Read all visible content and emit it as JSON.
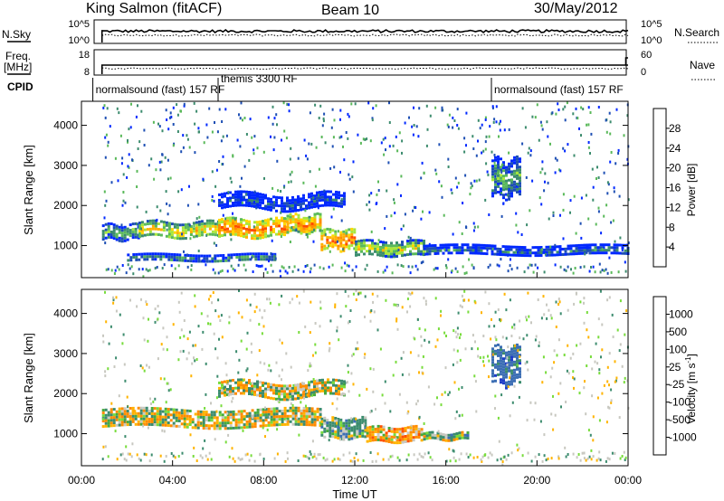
{
  "header": {
    "station": "King Salmon (fitACF)",
    "beam": "Beam 10",
    "date": "30/May/2012"
  },
  "noise_panel": {
    "left_label": "N.Sky",
    "right_label": "N.Search",
    "left_ticks": [
      "10^5",
      "10^0"
    ],
    "right_ticks": [
      "10^5",
      "10^0"
    ]
  },
  "freq_panel": {
    "left_label_1": "Freq.",
    "left_label_2": "[MHz]",
    "right_label": "Nave",
    "left_ticks": [
      "18",
      "8"
    ],
    "right_ticks": [
      "60",
      "0"
    ]
  },
  "cpid": {
    "label": "CPID",
    "segments": [
      {
        "name": "normalsound (fast) 157 RF",
        "start_hour": 0.5,
        "end_hour": 6.0
      },
      {
        "name": "themis 3300 RF",
        "start_hour": 6.0,
        "end_hour": 18.0
      },
      {
        "name": "normalsound (fast) 157 RF",
        "start_hour": 18.0,
        "end_hour": 24.0
      }
    ]
  },
  "power_panel": {
    "ylabel": "Slant Range [km]",
    "colorbar_label": "Power [dB]",
    "colorbar_ticks": [
      "28",
      "24",
      "20",
      "16",
      "12",
      "8",
      "4"
    ],
    "colors": [
      "#ff0000",
      "#ff4d00",
      "#ff8c00",
      "#ffb000",
      "#ffd700",
      "#a8e63c",
      "#5ab95a",
      "#3c8c6e",
      "#1e4fb4",
      "#0028ff"
    ]
  },
  "velocity_panel": {
    "ylabel": "Slant Range [km]",
    "colorbar_label": "Velocity [m s",
    "colorbar_label_sup": "-1",
    "colorbar_label_end": "]",
    "colorbar_ticks": [
      "1000",
      "500",
      "100",
      "25",
      "-25",
      "-100",
      "-500",
      "-1000"
    ],
    "colors": [
      "#1e3cc8",
      "#3c6eb4",
      "#3c8c6e",
      "#46aa3c",
      "#78dc3c",
      "#c8c8c0",
      "#ffb400",
      "#ff8c00",
      "#ff5000",
      "#ff0000"
    ]
  },
  "xaxis": {
    "label": "Time UT",
    "ticks": [
      "00:00",
      "04:00",
      "08:00",
      "12:00",
      "16:00",
      "20:00",
      "00:00"
    ]
  },
  "chart_data": {
    "type": "heatmap",
    "title": "King Salmon (fitACF) Beam 10 30/May/2012",
    "xlabel": "Time UT",
    "ylabel": "Slant Range [km]",
    "x_range_hours": [
      0,
      24
    ],
    "y_range_km": [
      200,
      4600
    ],
    "yticks_km": [
      1000,
      2000,
      3000,
      4000
    ],
    "data_start_hour": 0.9,
    "power_features": [
      {
        "t0": 0.9,
        "t1": 2.5,
        "r_center": 1350,
        "r_half_width": 180,
        "power_db": 12
      },
      {
        "t0": 2.5,
        "t1": 6.0,
        "r_center": 1400,
        "r_half_width": 200,
        "power_db": 18
      },
      {
        "t0": 6.0,
        "t1": 9.0,
        "r_center": 1450,
        "r_half_width": 220,
        "power_db": 24
      },
      {
        "t0": 9.0,
        "t1": 10.5,
        "r_center": 1550,
        "r_half_width": 220,
        "power_db": 22
      },
      {
        "t0": 10.5,
        "t1": 12.0,
        "r_center": 1150,
        "r_half_width": 250,
        "power_db": 24
      },
      {
        "t0": 12.0,
        "t1": 15.0,
        "r_center": 950,
        "r_half_width": 180,
        "power_db": 16
      },
      {
        "t0": 15.0,
        "t1": 24.0,
        "r_center": 900,
        "r_half_width": 120,
        "power_db": 8
      },
      {
        "t0": 2.0,
        "t1": 8.5,
        "r_center": 700,
        "r_half_width": 100,
        "power_db": 10
      },
      {
        "t0": 6.0,
        "t1": 11.5,
        "r_center": 2100,
        "r_half_width": 200,
        "power_db": 6
      },
      {
        "t0": 18.0,
        "t1": 19.2,
        "r_center": 2700,
        "r_half_width": 450,
        "power_db": 12
      }
    ],
    "velocity_features": [
      {
        "t0": 0.9,
        "t1": 10.5,
        "r_center": 1400,
        "r_half_width": 220,
        "velocity_ms": 0
      },
      {
        "t0": 10.5,
        "t1": 12.5,
        "r_center": 1150,
        "r_half_width": 250,
        "velocity_ms": 150
      },
      {
        "t0": 12.5,
        "t1": 15.0,
        "r_center": 1000,
        "r_half_width": 180,
        "velocity_ms": -150
      },
      {
        "t0": 15.0,
        "t1": 17.0,
        "r_center": 950,
        "r_half_width": 80,
        "velocity_ms": 100
      },
      {
        "t0": 6.0,
        "t1": 11.5,
        "r_center": 2100,
        "r_half_width": 200,
        "velocity_ms": 0
      },
      {
        "t0": 18.0,
        "t1": 19.2,
        "r_center": 2700,
        "r_half_width": 450,
        "velocity_ms": 500
      }
    ]
  }
}
